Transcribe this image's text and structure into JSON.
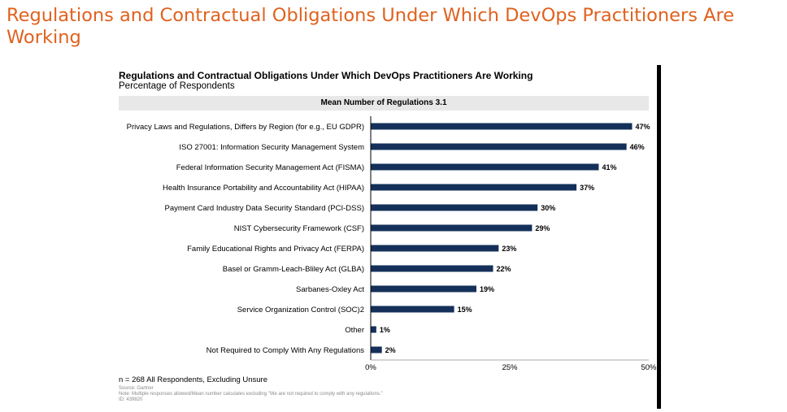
{
  "slide": {
    "title": "Regulations and Contractual Obligations Under Which DevOps Practitioners Are Working"
  },
  "chart_data": {
    "type": "bar",
    "orientation": "horizontal",
    "title": "Regulations and Contractual Obligations Under Which DevOps Practitioners Are Working",
    "subtitle": "Percentage of Respondents",
    "mean_label": "Mean Number of Regulations 3.1",
    "categories": [
      "Privacy Laws and Regulations, Differs by Region (for e.g., EU GDPR)",
      "ISO 27001: Information Security Management System",
      "Federal Information Security Management Act (FISMA)",
      "Health Insurance Portability and Accountability Act (HIPAA)",
      "Payment Card Industry Data Security Standard (PCI-DSS)",
      "NIST Cybersecurity Framework (CSF)",
      "Family Educational Rights and Privacy Act (FERPA)",
      "Basel or Gramm-Leach-Bliley Act (GLBA)",
      "Sarbanes-Oxley Act",
      "Service Organization Control (SOC)2",
      "Other",
      "Not Required to Comply With Any Regulations"
    ],
    "values": [
      47,
      46,
      41,
      37,
      30,
      29,
      23,
      22,
      19,
      15,
      1,
      2
    ],
    "value_labels": [
      "47%",
      "46%",
      "41%",
      "37%",
      "30%",
      "29%",
      "23%",
      "22%",
      "19%",
      "15%",
      "1%",
      "2%"
    ],
    "xlim": [
      0,
      50
    ],
    "xticks": [
      0,
      25,
      50
    ],
    "xtick_labels": [
      "0%",
      "25%",
      "50%"
    ],
    "xlabel": "",
    "ylabel": "",
    "grid": false,
    "bar_color": "#14305a"
  },
  "footnotes": {
    "n": "n = 268 All Respondents, Excluding Unsure",
    "source": "Source: Gartner",
    "note": "Note: Multiple responses allowed/Mean number calculates excluding \"We are not required to comply with any regulations.\"",
    "id": "ID: 439820"
  }
}
